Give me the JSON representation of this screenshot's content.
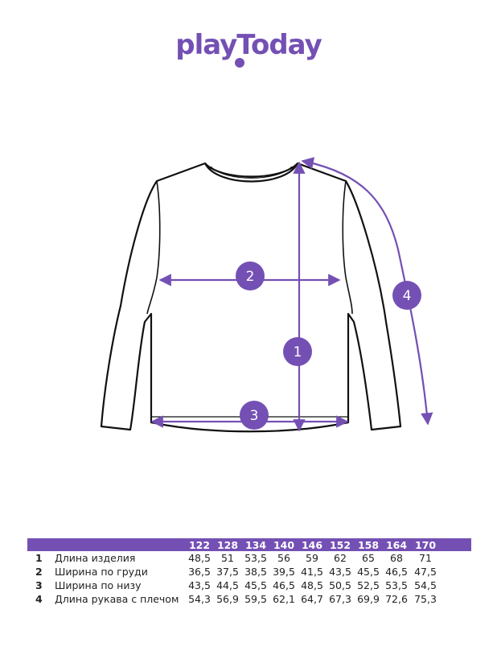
{
  "brand": {
    "logo_text": "playToday",
    "color": "#7450b4"
  },
  "diagram": {
    "markers": [
      {
        "id": "1",
        "measure": "Длина изделия"
      },
      {
        "id": "2",
        "measure": "Ширина по груди"
      },
      {
        "id": "3",
        "measure": "Ширина по низу"
      },
      {
        "id": "4",
        "measure": "Длина рукава с плечом"
      }
    ]
  },
  "table": {
    "sizes": [
      "122",
      "128",
      "134",
      "140",
      "146",
      "152",
      "158",
      "164",
      "170"
    ],
    "rows": [
      {
        "num": "1",
        "label": "Длина изделия",
        "values": [
          "48,5",
          "51",
          "53,5",
          "56",
          "59",
          "62",
          "65",
          "68",
          "71"
        ]
      },
      {
        "num": "2",
        "label": "Ширина по груди",
        "values": [
          "36,5",
          "37,5",
          "38,5",
          "39,5",
          "41,5",
          "43,5",
          "45,5",
          "46,5",
          "47,5"
        ]
      },
      {
        "num": "3",
        "label": "Ширина по низу",
        "values": [
          "43,5",
          "44,5",
          "45,5",
          "46,5",
          "48,5",
          "50,5",
          "52,5",
          "53,5",
          "54,5"
        ]
      },
      {
        "num": "4",
        "label": "Длина рукава с плечом",
        "values": [
          "54,3",
          "56,9",
          "59,5",
          "62,1",
          "64,7",
          "67,3",
          "69,9",
          "72,6",
          "75,3"
        ]
      }
    ]
  }
}
